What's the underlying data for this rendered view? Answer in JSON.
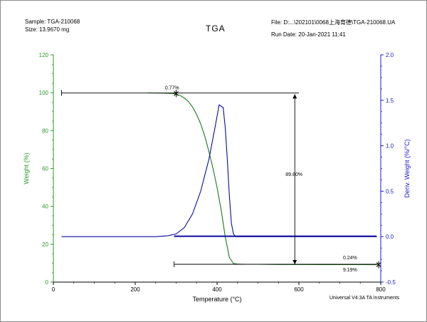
{
  "header": {
    "sample": "Sample: TGA-210068",
    "size": "Size:  13.9670 mg",
    "file": "File: D:...\\202101\\0068上海育德\\TGA-210068.UA",
    "run_date": "Run Date: 20-Jan-2021 11:41"
  },
  "footer": "Universal V4.3A TA Instruments",
  "colors": {
    "weight": "#1a7a1a",
    "deriv": "#0a0aa0",
    "axis_green": "#2a9a2a",
    "axis_blue": "#1a1ad0",
    "annot": "#000000"
  },
  "chart_data": {
    "type": "line",
    "title": "TGA",
    "xlabel": "Temperature (°C)",
    "ylabel_left": "Weight (%)",
    "ylabel_right": "Deriv. Weight (%/°C)",
    "xlim": [
      0,
      800
    ],
    "ylim_left": [
      0,
      120
    ],
    "ylim_right": [
      -0.5,
      2.0
    ],
    "x_ticks": [
      0,
      200,
      400,
      600,
      800
    ],
    "y_left_ticks": [
      0,
      20,
      40,
      60,
      80,
      100,
      120
    ],
    "y_right_ticks": [
      -0.5,
      0.0,
      0.5,
      1.0,
      1.5,
      2.0
    ],
    "y_right_tick_labels": [
      "-0.5",
      "0.0",
      "0.5",
      "1.0",
      "1.5",
      "2.0"
    ],
    "grid": false,
    "series": [
      {
        "axis": "left",
        "x": [
          230,
          270,
          290,
          300,
          310,
          320,
          330,
          340,
          350,
          360,
          370,
          380,
          390,
          400,
          410,
          420,
          430,
          440,
          450,
          470,
          500,
          550,
          600,
          650,
          700,
          750,
          790
        ],
        "y": [
          99.9,
          99.8,
          99.6,
          99.3,
          98.5,
          97.2,
          95.3,
          92.5,
          88.5,
          83.5,
          77.0,
          69.0,
          60.0,
          50.0,
          38.0,
          24.0,
          13.0,
          9.8,
          9.5,
          9.4,
          9.4,
          9.3,
          9.3,
          9.25,
          9.22,
          9.2,
          9.19
        ]
      },
      {
        "axis": "right",
        "x": [
          20,
          100,
          200,
          250,
          280,
          300,
          320,
          340,
          360,
          380,
          395,
          405,
          415,
          420,
          425,
          430,
          435,
          440,
          445,
          450,
          470,
          520,
          600,
          700,
          790
        ],
        "y": [
          0.0,
          0.0,
          0.0,
          0.0,
          0.01,
          0.03,
          0.1,
          0.25,
          0.5,
          0.85,
          1.2,
          1.45,
          1.42,
          1.2,
          0.85,
          0.45,
          0.15,
          0.03,
          0.0,
          0.0,
          0.0,
          0.0,
          0.0,
          0.0,
          0.0
        ]
      },
      {
        "axis": "right",
        "x": [
          295,
          400,
          500,
          600,
          700,
          790
        ],
        "y": [
          0.005,
          0.005,
          0.005,
          0.005,
          0.005,
          0.005
        ]
      }
    ],
    "annotations": [
      {
        "label": "0.77%",
        "x": 290,
        "y": 101.8
      },
      {
        "label": "89.80%",
        "x": 588,
        "y": 56.0
      },
      {
        "label": "0.24%",
        "x": 725,
        "y": 12.0
      },
      {
        "label": "9.19%",
        "x": 725,
        "y": 5.6
      }
    ],
    "markers": {
      "top_line": {
        "x1": 20,
        "x2": 600,
        "y": 99.9
      },
      "vertical": {
        "x": 590,
        "y1": 99.2,
        "y2": 9.4
      },
      "bottom_line": {
        "x1": 295,
        "x2": 795,
        "y": 9.4
      },
      "x_marks": [
        {
          "x": 300,
          "y": 99.6
        },
        {
          "x": 795,
          "y": 9.2
        }
      ]
    }
  }
}
